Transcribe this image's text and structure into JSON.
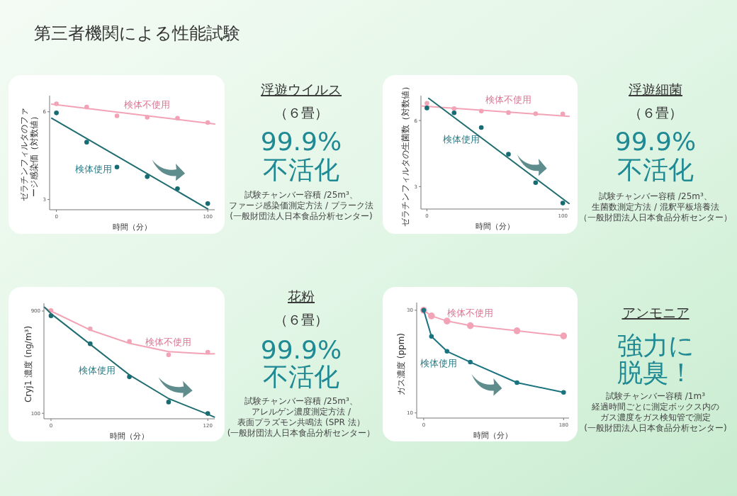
{
  "chart_data": [
    {
      "type": "other",
      "title": "第三者機関による性能試験"
    },
    {
      "type": "scatter",
      "ylabel": "ゼラチンフィルタのファージ感染価（対数値）",
      "xlabel": "時間（分）",
      "xlim": [
        -4.5,
        104.6
      ],
      "ylim": [
        2.65,
        6.55
      ],
      "xticks": [
        0,
        100
      ],
      "yticks": [
        3,
        6
      ],
      "series": [
        {
          "name": "検体不使用",
          "type": "scatter",
          "color": "#f2a3b6",
          "x": [
            0,
            20,
            40,
            60,
            80,
            100
          ],
          "values": [
            6.27,
            6.16,
            5.86,
            5.81,
            5.78,
            5.63
          ]
        },
        {
          "type": "line",
          "color": "#f2a3b6",
          "x": [
            -3.1,
            104.6
          ],
          "values": [
            6.26,
            5.58
          ]
        },
        {
          "name": "検体使用",
          "type": "scatter",
          "color": "#176b73",
          "x": [
            0,
            20,
            40,
            60,
            80,
            100
          ],
          "values": [
            5.96,
            4.96,
            4.11,
            3.78,
            3.37,
            2.86
          ]
        },
        {
          "type": "line",
          "color": "#1f6d70",
          "x": [
            -3.1,
            100
          ],
          "values": [
            5.78,
            2.68
          ]
        }
      ]
    },
    {
      "type": "other",
      "title": "浮遊ウイルス",
      "subtitle": "（６畳）",
      "annotations": [
        "99.9%",
        "不活化",
        "試験チャンバー容積 /25m³、",
        "ファージ感染価測定方法 / プラーク法",
        "(一般財団法人日本食品分析センター)"
      ]
    },
    {
      "type": "scatter",
      "ylabel": "ゼラチンフィルタの生菌数（対数値）",
      "xlabel": "時間（分）",
      "xlim": [
        -4.4,
        104.6
      ],
      "ylim": [
        1.98,
        7.13
      ],
      "xticks": [
        0,
        100
      ],
      "yticks": [
        3,
        6
      ],
      "series": [
        {
          "name": "検体不使用",
          "type": "scatter",
          "color": "#f2a3b6",
          "x": [
            0,
            20,
            40,
            60,
            80,
            100
          ],
          "values": [
            6.78,
            6.54,
            6.43,
            6.36,
            6.31,
            6.3
          ]
        },
        {
          "type": "line",
          "color": "#f2a3b6",
          "x": [
            -4.4,
            104.6
          ],
          "values": [
            6.66,
            6.19
          ]
        },
        {
          "name": "検体使用",
          "type": "scatter",
          "color": "#176b73",
          "x": [
            0,
            20,
            40,
            60,
            80,
            100
          ],
          "values": [
            6.57,
            6.35,
            5.68,
            4.47,
            3.18,
            2.25
          ]
        },
        {
          "type": "line",
          "color": "#1f6d70",
          "x": [
            1.3,
            104.6
          ],
          "values": [
            7.01,
            2.23
          ]
        }
      ]
    },
    {
      "type": "other",
      "title": "浮遊細菌",
      "subtitle": "（６畳）",
      "annotations": [
        "99.9%",
        "不活化",
        "試験チャンバー容積 /25m³、",
        "生菌数測定方法 / 混釈平板培養法",
        "（一般財団法人日本食品分析センター）"
      ]
    },
    {
      "type": "scatter",
      "ylabel": "Cryj1 濃度 (ng/m³)",
      "xlabel": "時間（分）",
      "xlim": [
        -5.4,
        125.3
      ],
      "ylim": [
        57,
        961
      ],
      "xticks": [
        0,
        120
      ],
      "yticks": [
        100,
        900
      ],
      "series": [
        {
          "name": "検体不使用",
          "type": "scatter",
          "color": "#f2a3b6",
          "x": [
            0,
            30,
            60,
            90,
            120
          ],
          "values": [
            904,
            761,
            663,
            557,
            578
          ]
        },
        {
          "type": "line",
          "color": "#f2a3b6",
          "x": [
            -5,
            0,
            30,
            60,
            90,
            120,
            125
          ],
          "values": [
            925,
            900,
            752,
            648,
            582,
            565,
            566
          ]
        },
        {
          "name": "検体使用",
          "type": "scatter",
          "color": "#176b73",
          "x": [
            0,
            30,
            60,
            90,
            120
          ],
          "values": [
            863,
            644,
            385,
            188,
            98
          ]
        },
        {
          "type": "line",
          "color": "#1f6d70",
          "x": [
            -5,
            0,
            30,
            60,
            90,
            120,
            125
          ],
          "values": [
            930,
            880,
            640,
            400,
            215,
            92,
            70
          ]
        }
      ]
    },
    {
      "type": "other",
      "title": "花粉",
      "subtitle": "（６畳）",
      "annotations": [
        "99.9%",
        "不活化",
        "試験チャンバー容積 /25m³、",
        "アレルゲン濃度測定方法 /",
        "表面プラズモン共鳴法 (SPR 法）",
        "(一般財団法人日本食品分析センター）"
      ]
    },
    {
      "type": "line",
      "marker": "circle",
      "ylabel": "ガス濃度 (ppm)",
      "xlabel": "時間（分）",
      "xlim": [
        -9,
        187
      ],
      "ylim": [
        9,
        31.5
      ],
      "xticks": [
        0,
        180
      ],
      "yticks": [
        10,
        30
      ],
      "series": [
        {
          "name": "検体不使用",
          "color": "#f2a3b6",
          "x": [
            0,
            10,
            30,
            60,
            120,
            180
          ],
          "values": [
            30,
            28.9,
            27.9,
            27,
            26,
            25
          ]
        },
        {
          "name": "検体使用",
          "color": "#1a7480",
          "x": [
            0,
            10,
            30,
            60,
            120,
            180
          ],
          "values": [
            30,
            24.9,
            22,
            19.9,
            15.9,
            14
          ]
        }
      ]
    },
    {
      "type": "other",
      "title": "アンモニア",
      "annotations": [
        "強力に",
        "脱臭！",
        "試験チャンバー容積 /1m³",
        "経過時間ごとに測定ボックス内の",
        "ガス濃度をガス検知管で測定",
        "(一般財団法人日本食品分析センター)"
      ]
    }
  ]
}
